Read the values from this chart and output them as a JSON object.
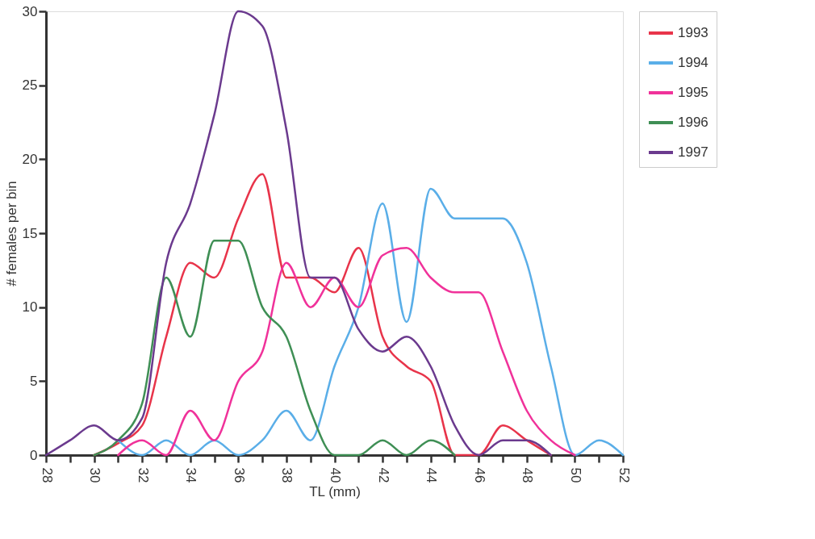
{
  "chart_data": {
    "type": "line",
    "xlabel": "TL  (mm)",
    "ylabel": "# females per bin",
    "x": [
      28,
      29,
      30,
      31,
      32,
      33,
      34,
      35,
      36,
      37,
      38,
      39,
      40,
      41,
      42,
      43,
      44,
      45,
      46,
      47,
      48,
      49,
      50,
      51,
      52
    ],
    "xlim": [
      28,
      52
    ],
    "ylim": [
      0,
      30
    ],
    "xticks": [
      28,
      {
        "value": 29,
        "label": null
      },
      30,
      {
        "value": 31,
        "label": null
      },
      32,
      {
        "value": 33,
        "label": null
      },
      34,
      {
        "value": 35,
        "label": null
      },
      36,
      {
        "value": 37,
        "label": null
      },
      38,
      {
        "value": 39,
        "label": null
      },
      40,
      {
        "value": 41,
        "label": null
      },
      42,
      {
        "value": 43,
        "label": null
      },
      44,
      {
        "value": 45,
        "label": null
      },
      46,
      {
        "value": 47,
        "label": null
      },
      48,
      {
        "value": 49,
        "label": null
      },
      50,
      {
        "value": 51,
        "label": null
      },
      52
    ],
    "yticks": [
      0,
      5,
      10,
      15,
      20,
      25,
      30
    ],
    "grid": false,
    "legend": "right",
    "marker": "none",
    "line_style": "solid",
    "series": [
      {
        "name": "1993",
        "color": "#e8344a",
        "values": [
          null,
          null,
          0,
          0.8,
          2,
          8,
          13,
          12,
          16,
          19,
          12,
          12,
          11,
          14,
          8,
          6,
          5,
          0,
          0,
          2,
          1,
          0,
          null,
          null,
          null
        ]
      },
      {
        "name": "1994",
        "color": "#5aaee8",
        "values": [
          null,
          null,
          null,
          1,
          0,
          1,
          0,
          1,
          0,
          1,
          3,
          1,
          6,
          10,
          17,
          9,
          18,
          16,
          16,
          16,
          13,
          6,
          0,
          1,
          0
        ]
      },
      {
        "name": "1995",
        "color": "#f0329a",
        "values": [
          null,
          null,
          null,
          0,
          1,
          0,
          3,
          1,
          5,
          7,
          13,
          10,
          12,
          10,
          13.5,
          14,
          12,
          11,
          11,
          7,
          3,
          1,
          0,
          null,
          null
        ]
      },
      {
        "name": "1996",
        "color": "#3f8f55",
        "values": [
          null,
          null,
          0,
          1,
          3.5,
          12,
          8,
          14.5,
          14.5,
          10,
          8,
          3,
          0,
          0,
          1,
          0,
          1,
          0,
          null,
          null,
          null,
          null,
          null,
          null,
          null
        ]
      },
      {
        "name": "1997",
        "color": "#6b3a8e",
        "values": [
          0,
          1,
          2,
          1,
          2.5,
          13,
          17,
          23,
          30,
          29,
          22,
          12,
          12,
          8.5,
          7,
          8,
          6,
          2,
          0,
          1,
          1,
          0,
          null,
          null,
          null
        ]
      }
    ]
  }
}
